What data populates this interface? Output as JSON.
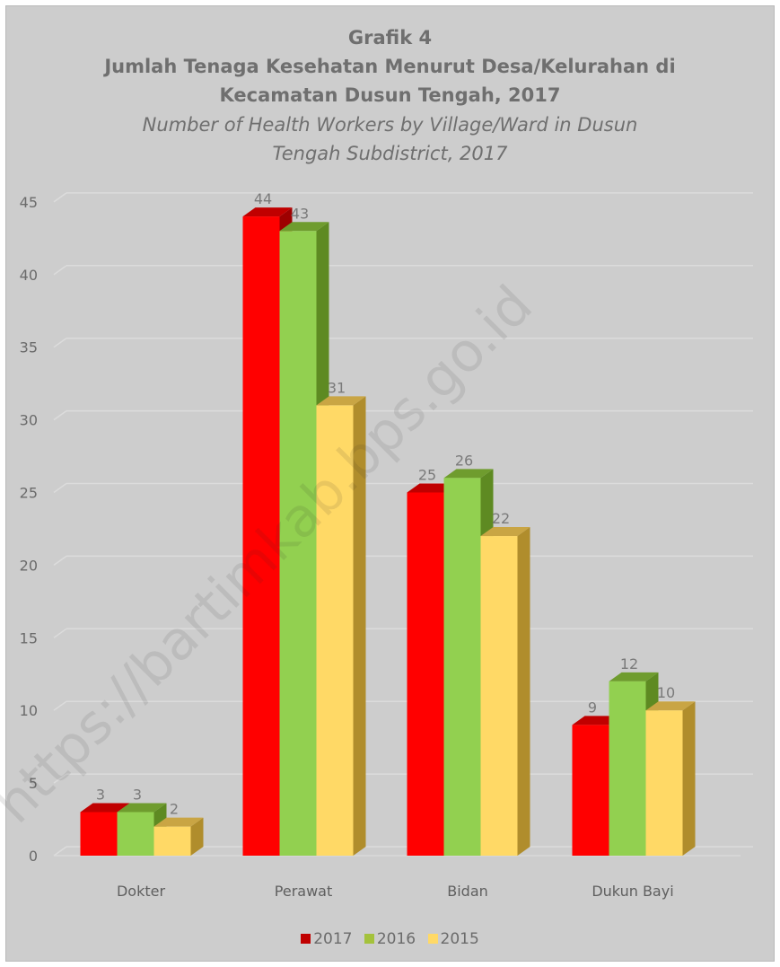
{
  "chart_data": {
    "type": "bar",
    "title": "Grafik 4",
    "subtitle_id": [
      "Jumlah Tenaga Kesehatan Menurut Desa/Kelurahan di",
      "Kecamatan Dusun Tengah, 2017"
    ],
    "subtitle_en": [
      "Number of Health Workers by Village/Ward  in Dusun",
      "Tengah Subdistrict, 2017"
    ],
    "categories": [
      "Dokter",
      "Perawat",
      "Bidan",
      "Dukun Bayi"
    ],
    "series": [
      {
        "name": "2017",
        "values": [
          3,
          44,
          25,
          9
        ],
        "color": "#ff0000",
        "side": "#9e0000",
        "top": "#c00000"
      },
      {
        "name": "2016",
        "values": [
          3,
          43,
          26,
          12
        ],
        "color": "#92d050",
        "side": "#5e8a22",
        "top": "#6f9c2e"
      },
      {
        "name": "2015",
        "values": [
          2,
          31,
          22,
          10
        ],
        "color": "#ffd966",
        "side": "#b08d2c",
        "top": "#c9a544"
      }
    ],
    "ylim": [
      0,
      45
    ],
    "yticks": [
      0,
      5,
      10,
      15,
      20,
      25,
      30,
      35,
      40,
      45
    ],
    "grid": true,
    "legend_position": "bottom",
    "three_d": true
  },
  "watermark": "https://bartimkab.bps.go.id"
}
